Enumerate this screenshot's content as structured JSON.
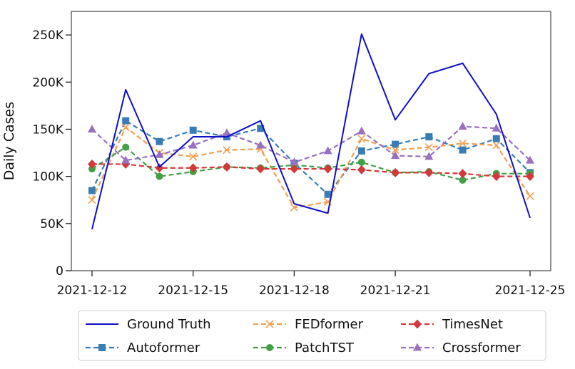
{
  "chart_data": {
    "type": "line",
    "title": "",
    "xlabel": "",
    "ylabel": "Daily Cases",
    "x": [
      "2021-12-12",
      "2021-12-13",
      "2021-12-14",
      "2021-12-15",
      "2021-12-16",
      "2021-12-17",
      "2021-12-18",
      "2021-12-19",
      "2021-12-20",
      "2021-12-21",
      "2021-12-22",
      "2021-12-23",
      "2021-12-24",
      "2021-12-25"
    ],
    "x_ticks": [
      "2021-12-12",
      "2021-12-15",
      "2021-12-18",
      "2021-12-21",
      "2021-12-25"
    ],
    "xlim": [
      "2021-12-12",
      "2021-12-25"
    ],
    "y_ticks": [
      0,
      50000,
      100000,
      150000,
      200000,
      250000
    ],
    "y_tick_labels": [
      "0",
      "50K",
      "100K",
      "150K",
      "200K",
      "250K"
    ],
    "ylim": [
      0,
      275000
    ],
    "grid": false,
    "legend_position": "bottom",
    "series": [
      {
        "name": "Ground Truth",
        "color": "#1010c8",
        "style": "solid",
        "marker": "none",
        "values": [
          44000,
          192000,
          110000,
          142000,
          142000,
          159000,
          71000,
          61000,
          251000,
          160000,
          209000,
          220000,
          166000,
          56000
        ]
      },
      {
        "name": "Autoformer",
        "color": "#3a7db5",
        "style": "dashed",
        "marker": "square",
        "values": [
          85000,
          159000,
          137000,
          149000,
          142000,
          151000,
          114000,
          81000,
          127000,
          134000,
          142000,
          128000,
          140000,
          104000
        ]
      },
      {
        "name": "FEDformer",
        "color": "#f0a050",
        "style": "dashed",
        "marker": "x",
        "values": [
          75000,
          152000,
          125000,
          121000,
          128000,
          129000,
          67000,
          73000,
          140000,
          128000,
          131000,
          135000,
          133000,
          79000
        ]
      },
      {
        "name": "PatchTST",
        "color": "#44a044",
        "style": "dashed",
        "marker": "circle",
        "values": [
          108000,
          131000,
          100000,
          105000,
          110000,
          109000,
          112000,
          109000,
          115000,
          104000,
          105000,
          96000,
          103000,
          103000
        ]
      },
      {
        "name": "TimesNet",
        "color": "#d13a3a",
        "style": "dashed",
        "marker": "diamond",
        "values": [
          113000,
          113000,
          109000,
          109000,
          110000,
          108000,
          108000,
          108000,
          107000,
          104000,
          104000,
          103000,
          100000,
          100000
        ]
      },
      {
        "name": "Crossformer",
        "color": "#9a70c0",
        "style": "dashed",
        "marker": "triangle",
        "values": [
          150000,
          117000,
          123000,
          133000,
          146000,
          133000,
          115000,
          127000,
          148000,
          122000,
          121000,
          153000,
          151000,
          117000
        ]
      }
    ]
  }
}
